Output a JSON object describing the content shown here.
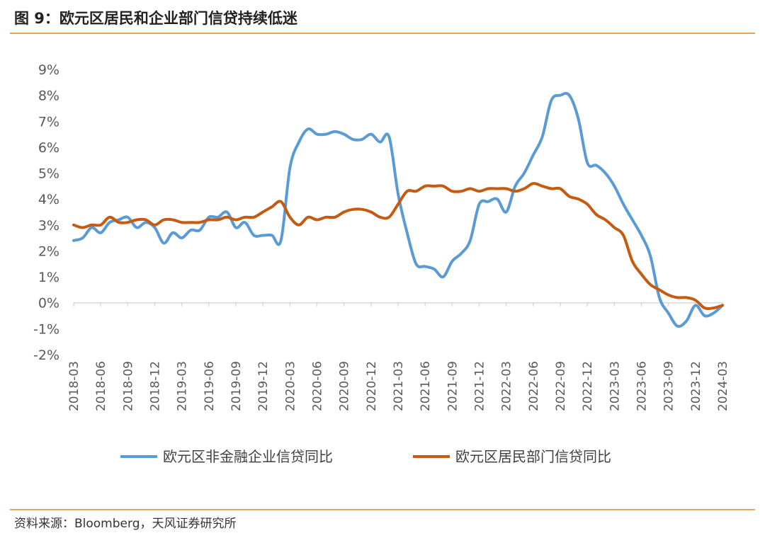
{
  "header": {
    "title": "图 9：欧元区居民和企业部门信贷持续低迷"
  },
  "footer": {
    "source": "资料来源：Bloomberg，天风证券研究所"
  },
  "chart_data": {
    "type": "line",
    "title": "",
    "xlabel": "",
    "ylabel": "",
    "ylim": [
      -2,
      9
    ],
    "y_ticks": [
      "9%",
      "8%",
      "7%",
      "6%",
      "5%",
      "4%",
      "3%",
      "2%",
      "1%",
      "0%",
      "-1%",
      "-2%"
    ],
    "y_tick_values": [
      9,
      8,
      7,
      6,
      5,
      4,
      3,
      2,
      1,
      0,
      -1,
      -2
    ],
    "x_ticks": [
      "2018-03",
      "2018-06",
      "2018-09",
      "2018-12",
      "2019-03",
      "2019-06",
      "2019-09",
      "2019-12",
      "2020-03",
      "2020-06",
      "2020-09",
      "2020-12",
      "2021-03",
      "2021-06",
      "2021-09",
      "2021-12",
      "2022-03",
      "2022-06",
      "2022-09",
      "2022-12",
      "2023-03",
      "2023-06",
      "2023-09",
      "2023-12",
      "2024-03"
    ],
    "legend_position": "bottom",
    "grid": false,
    "series": [
      {
        "name": "欧元区非金融企业信贷同比",
        "color": "#5b9bd5",
        "points": [
          [
            "2018-03",
            2.4
          ],
          [
            "2018-04",
            2.5
          ],
          [
            "2018-05",
            2.9
          ],
          [
            "2018-06",
            2.7
          ],
          [
            "2018-07",
            3.1
          ],
          [
            "2018-08",
            3.2
          ],
          [
            "2018-09",
            3.3
          ],
          [
            "2018-10",
            2.9
          ],
          [
            "2018-11",
            3.1
          ],
          [
            "2018-12",
            2.9
          ],
          [
            "2019-01",
            2.3
          ],
          [
            "2019-02",
            2.7
          ],
          [
            "2019-03",
            2.5
          ],
          [
            "2019-04",
            2.8
          ],
          [
            "2019-05",
            2.8
          ],
          [
            "2019-06",
            3.3
          ],
          [
            "2019-07",
            3.3
          ],
          [
            "2019-08",
            3.5
          ],
          [
            "2019-09",
            2.9
          ],
          [
            "2019-10",
            3.1
          ],
          [
            "2019-11",
            2.6
          ],
          [
            "2019-12",
            2.6
          ],
          [
            "2020-01",
            2.6
          ],
          [
            "2020-02",
            2.4
          ],
          [
            "2020-03",
            5.2
          ],
          [
            "2020-04",
            6.2
          ],
          [
            "2020-05",
            6.7
          ],
          [
            "2020-06",
            6.5
          ],
          [
            "2020-07",
            6.5
          ],
          [
            "2020-08",
            6.6
          ],
          [
            "2020-09",
            6.5
          ],
          [
            "2020-10",
            6.3
          ],
          [
            "2020-11",
            6.3
          ],
          [
            "2020-12",
            6.5
          ],
          [
            "2021-01",
            6.2
          ],
          [
            "2021-02",
            6.4
          ],
          [
            "2021-03",
            4.2
          ],
          [
            "2021-04",
            2.7
          ],
          [
            "2021-05",
            1.5
          ],
          [
            "2021-06",
            1.4
          ],
          [
            "2021-07",
            1.3
          ],
          [
            "2021-08",
            1.0
          ],
          [
            "2021-09",
            1.6
          ],
          [
            "2021-10",
            1.9
          ],
          [
            "2021-11",
            2.4
          ],
          [
            "2021-12",
            3.8
          ],
          [
            "2022-01",
            3.9
          ],
          [
            "2022-02",
            4.0
          ],
          [
            "2022-03",
            3.5
          ],
          [
            "2022-04",
            4.5
          ],
          [
            "2022-05",
            5.0
          ],
          [
            "2022-06",
            5.7
          ],
          [
            "2022-07",
            6.4
          ],
          [
            "2022-08",
            7.8
          ],
          [
            "2022-09",
            8.0
          ],
          [
            "2022-10",
            8.0
          ],
          [
            "2022-11",
            7.1
          ],
          [
            "2022-12",
            5.4
          ],
          [
            "2023-01",
            5.3
          ],
          [
            "2023-02",
            5.0
          ],
          [
            "2023-03",
            4.5
          ],
          [
            "2023-04",
            3.8
          ],
          [
            "2023-05",
            3.2
          ],
          [
            "2023-06",
            2.6
          ],
          [
            "2023-07",
            1.8
          ],
          [
            "2023-08",
            0.2
          ],
          [
            "2023-09",
            -0.4
          ],
          [
            "2023-10",
            -0.9
          ],
          [
            "2023-11",
            -0.7
          ],
          [
            "2023-12",
            -0.1
          ],
          [
            "2024-01",
            -0.5
          ],
          [
            "2024-02",
            -0.4
          ],
          [
            "2024-03",
            -0.1
          ]
        ]
      },
      {
        "name": "欧元区居民部门信贷同比",
        "color": "#c55a11",
        "points": [
          [
            "2018-03",
            3.0
          ],
          [
            "2018-04",
            2.9
          ],
          [
            "2018-05",
            3.0
          ],
          [
            "2018-06",
            3.0
          ],
          [
            "2018-07",
            3.3
          ],
          [
            "2018-08",
            3.1
          ],
          [
            "2018-09",
            3.1
          ],
          [
            "2018-10",
            3.2
          ],
          [
            "2018-11",
            3.2
          ],
          [
            "2018-12",
            3.0
          ],
          [
            "2019-01",
            3.2
          ],
          [
            "2019-02",
            3.2
          ],
          [
            "2019-03",
            3.1
          ],
          [
            "2019-04",
            3.1
          ],
          [
            "2019-05",
            3.1
          ],
          [
            "2019-06",
            3.2
          ],
          [
            "2019-07",
            3.2
          ],
          [
            "2019-08",
            3.3
          ],
          [
            "2019-09",
            3.2
          ],
          [
            "2019-10",
            3.3
          ],
          [
            "2019-11",
            3.3
          ],
          [
            "2019-12",
            3.5
          ],
          [
            "2020-01",
            3.7
          ],
          [
            "2020-02",
            3.9
          ],
          [
            "2020-03",
            3.3
          ],
          [
            "2020-04",
            3.0
          ],
          [
            "2020-05",
            3.3
          ],
          [
            "2020-06",
            3.2
          ],
          [
            "2020-07",
            3.3
          ],
          [
            "2020-08",
            3.3
          ],
          [
            "2020-09",
            3.5
          ],
          [
            "2020-10",
            3.6
          ],
          [
            "2020-11",
            3.6
          ],
          [
            "2020-12",
            3.5
          ],
          [
            "2021-01",
            3.3
          ],
          [
            "2021-02",
            3.3
          ],
          [
            "2021-03",
            3.8
          ],
          [
            "2021-04",
            4.3
          ],
          [
            "2021-05",
            4.3
          ],
          [
            "2021-06",
            4.5
          ],
          [
            "2021-07",
            4.5
          ],
          [
            "2021-08",
            4.5
          ],
          [
            "2021-09",
            4.3
          ],
          [
            "2021-10",
            4.3
          ],
          [
            "2021-11",
            4.4
          ],
          [
            "2021-12",
            4.3
          ],
          [
            "2022-01",
            4.4
          ],
          [
            "2022-02",
            4.4
          ],
          [
            "2022-03",
            4.4
          ],
          [
            "2022-04",
            4.3
          ],
          [
            "2022-05",
            4.4
          ],
          [
            "2022-06",
            4.6
          ],
          [
            "2022-07",
            4.5
          ],
          [
            "2022-08",
            4.4
          ],
          [
            "2022-09",
            4.4
          ],
          [
            "2022-10",
            4.1
          ],
          [
            "2022-11",
            4.0
          ],
          [
            "2022-12",
            3.8
          ],
          [
            "2023-01",
            3.4
          ],
          [
            "2023-02",
            3.2
          ],
          [
            "2023-03",
            2.9
          ],
          [
            "2023-04",
            2.6
          ],
          [
            "2023-05",
            1.6
          ],
          [
            "2023-06",
            1.1
          ],
          [
            "2023-07",
            0.7
          ],
          [
            "2023-08",
            0.5
          ],
          [
            "2023-09",
            0.3
          ],
          [
            "2023-10",
            0.2
          ],
          [
            "2023-11",
            0.2
          ],
          [
            "2023-12",
            0.1
          ],
          [
            "2024-01",
            -0.2
          ],
          [
            "2024-02",
            -0.2
          ],
          [
            "2024-03",
            -0.1
          ]
        ]
      }
    ]
  }
}
